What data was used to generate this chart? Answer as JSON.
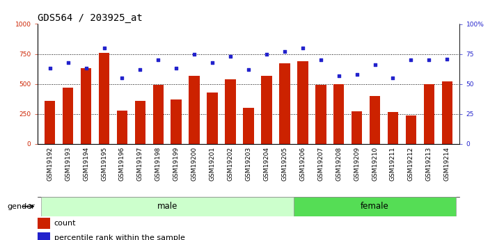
{
  "title": "GDS564 / 203925_at",
  "samples": [
    "GSM19192",
    "GSM19193",
    "GSM19194",
    "GSM19195",
    "GSM19196",
    "GSM19197",
    "GSM19198",
    "GSM19199",
    "GSM19200",
    "GSM19201",
    "GSM19202",
    "GSM19203",
    "GSM19204",
    "GSM19205",
    "GSM19206",
    "GSM19207",
    "GSM19208",
    "GSM19209",
    "GSM19210",
    "GSM19211",
    "GSM19212",
    "GSM19213",
    "GSM19214"
  ],
  "counts": [
    360,
    470,
    630,
    760,
    280,
    360,
    490,
    370,
    570,
    430,
    540,
    300,
    570,
    670,
    690,
    490,
    500,
    270,
    400,
    265,
    240,
    500,
    520
  ],
  "percentiles": [
    63,
    68,
    63,
    80,
    55,
    62,
    70,
    63,
    75,
    68,
    73,
    62,
    75,
    77,
    80,
    70,
    57,
    58,
    66,
    55,
    70,
    70,
    71
  ],
  "n_male": 14,
  "n_female": 9,
  "bar_color": "#cc2200",
  "dot_color": "#2222cc",
  "male_bg": "#ccffcc",
  "female_bg": "#55dd55",
  "xtick_bg": "#cccccc",
  "ylim_left": [
    0,
    1000
  ],
  "ylim_right": [
    0,
    100
  ],
  "yticks_left": [
    0,
    250,
    500,
    750,
    1000
  ],
  "yticks_right": [
    0,
    25,
    50,
    75,
    100
  ],
  "ytick_labels_left": [
    "0",
    "250",
    "500",
    "750",
    "1000"
  ],
  "ytick_labels_right": [
    "0",
    "25",
    "50",
    "75",
    "100%"
  ],
  "bar_width": 0.6,
  "background_color": "#ffffff",
  "title_fontsize": 10,
  "tick_fontsize": 6.5,
  "legend_label_count": "count",
  "legend_label_pct": "percentile rank within the sample",
  "gender_label": "gender",
  "group_label_male": "male",
  "group_label_female": "female"
}
